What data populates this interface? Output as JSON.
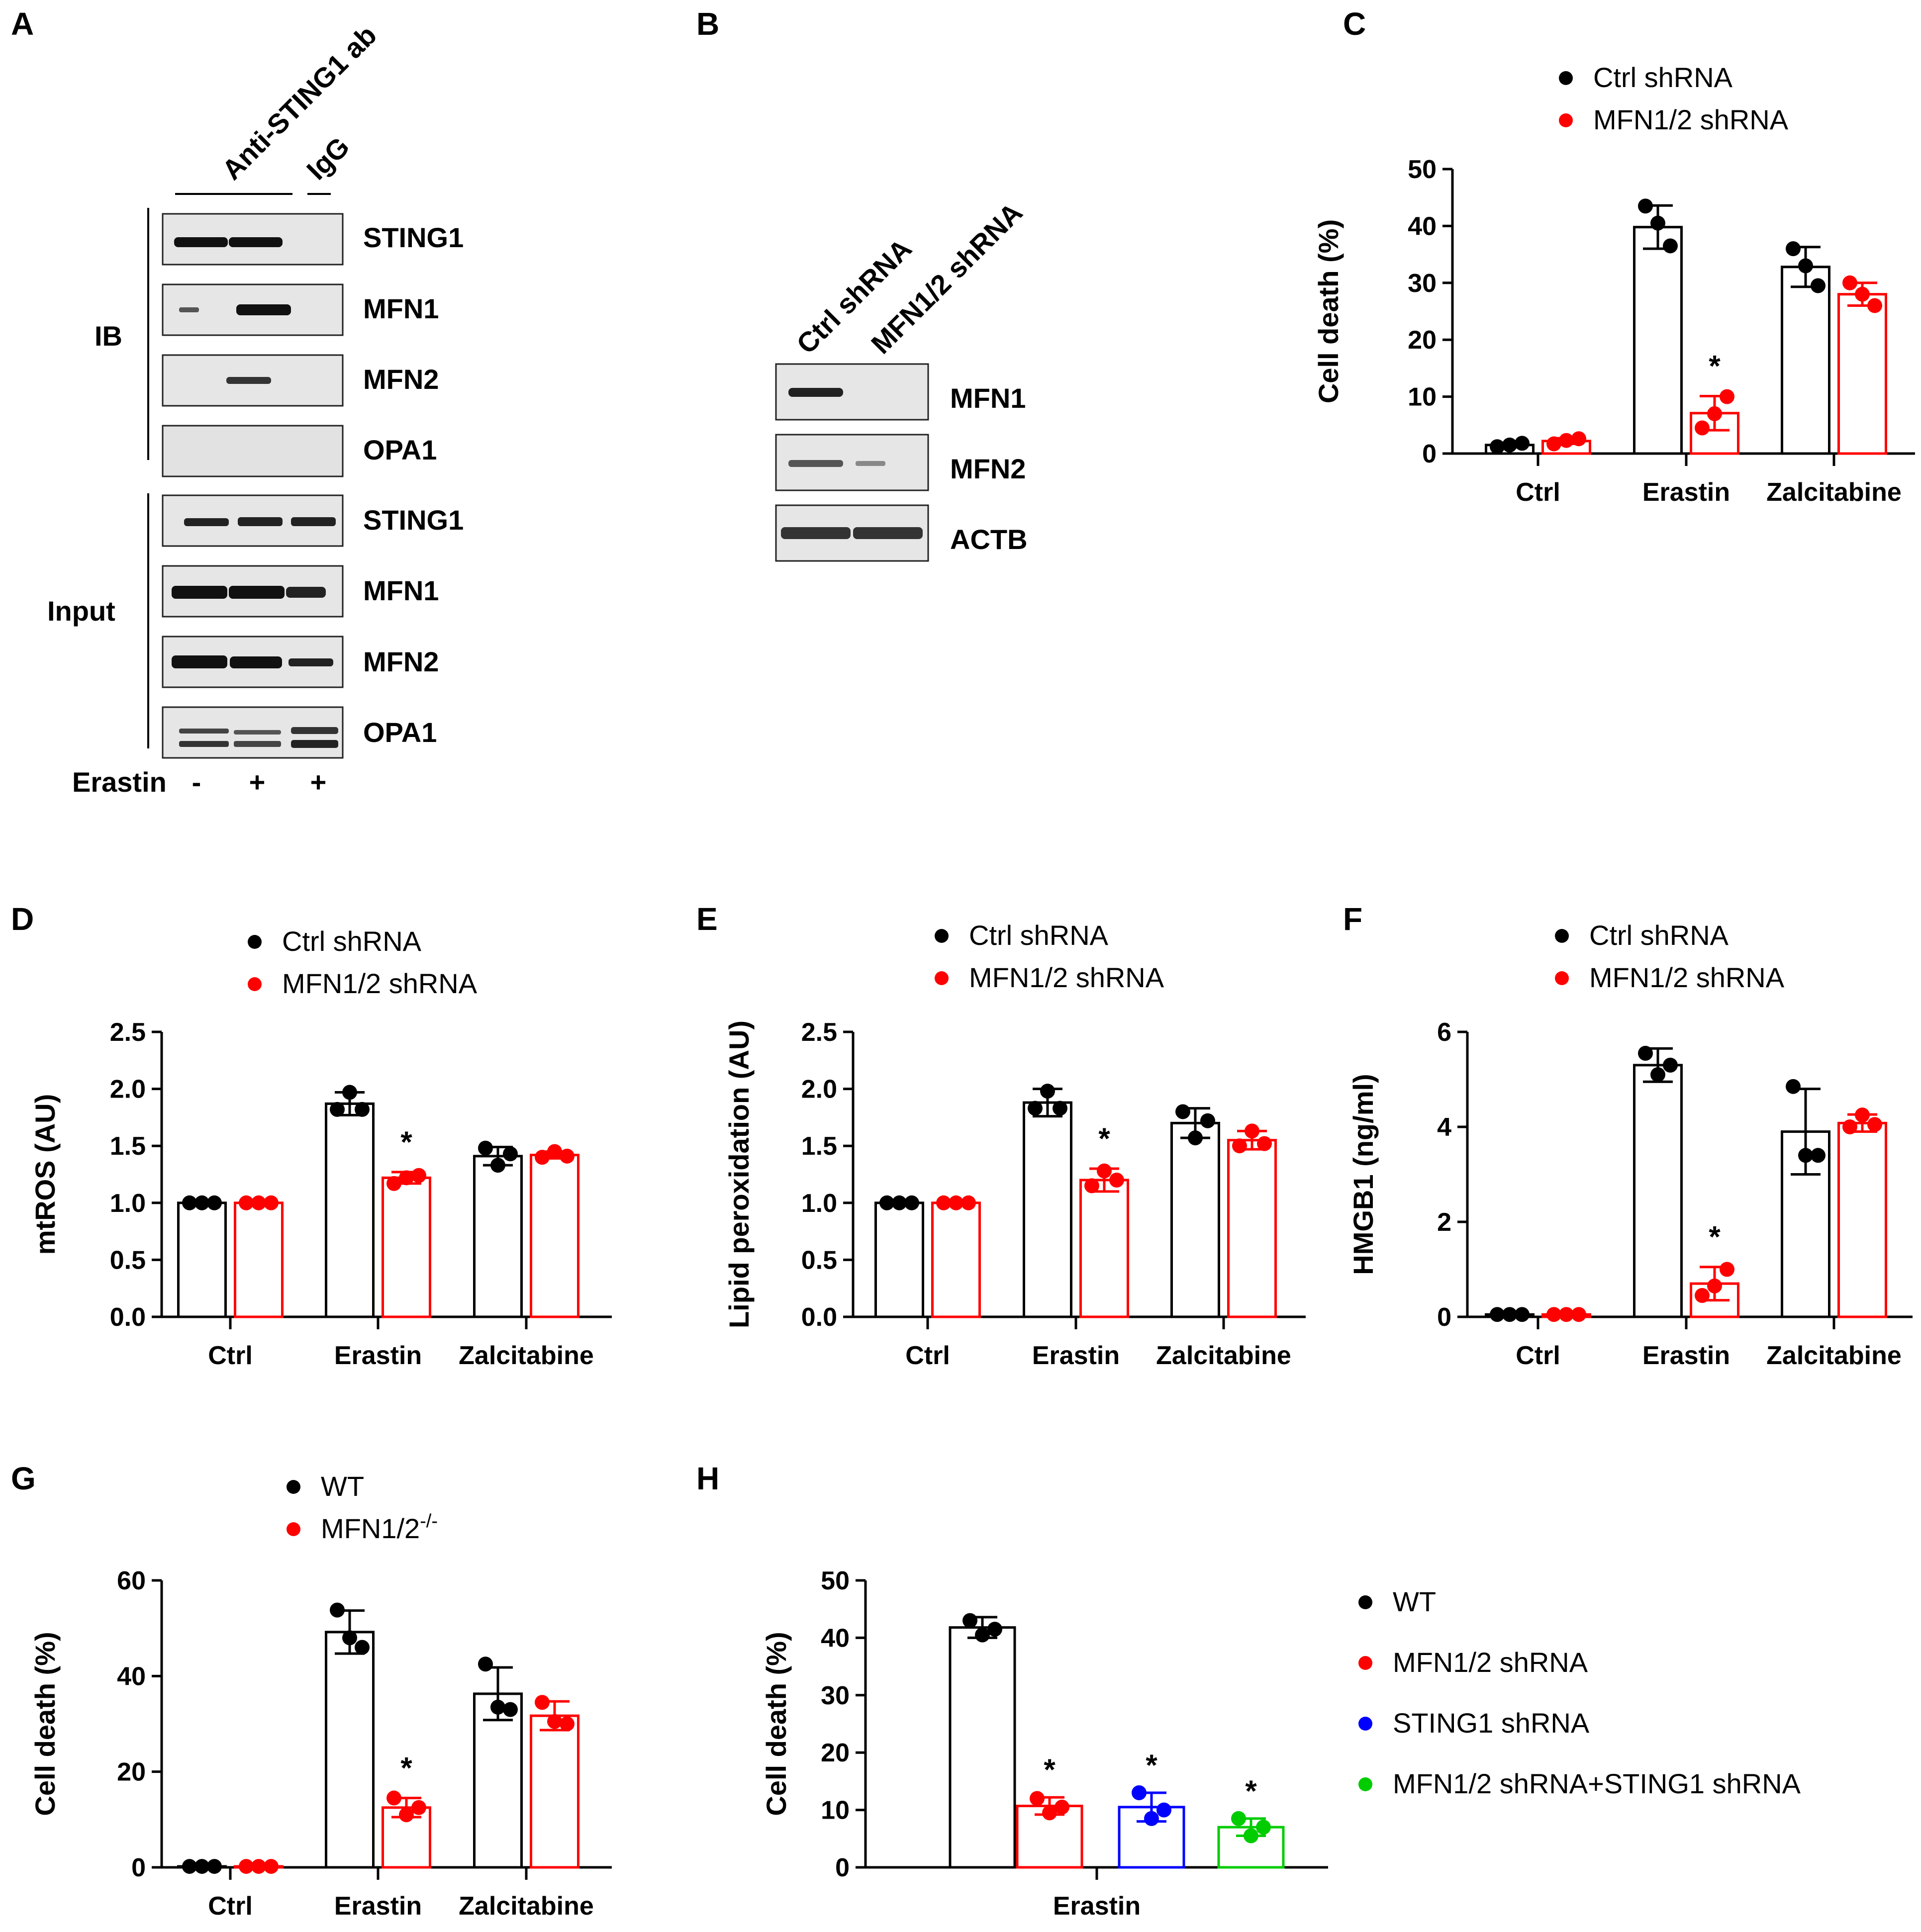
{
  "colors": {
    "ctrl": "#000000",
    "mfn": "#ff0000",
    "sting": "#0000ff",
    "combo": "#00cc00"
  },
  "panel_a": {
    "letter": "A",
    "header_ab": "Anti-STING1 ab",
    "header_igg": "IgG",
    "ib_label": "IB",
    "input_label": "Input",
    "ib_bands": [
      "STING1",
      "MFN1",
      "MFN2",
      "OPA1"
    ],
    "input_bands": [
      "STING1",
      "MFN1",
      "MFN2",
      "OPA1"
    ],
    "erastin_label": "Erastin",
    "erastin_signs": [
      "-",
      "+",
      "+"
    ]
  },
  "panel_b": {
    "letter": "B",
    "lanes": [
      "Ctrl shRNA",
      "MFN1/2 shRNA"
    ],
    "bands": [
      "MFN1",
      "MFN2",
      "ACTB"
    ]
  },
  "chart_data": [
    {
      "id": "C",
      "type": "bar",
      "title": "",
      "ylabel": "Cell death (%)",
      "ylim": [
        0,
        50
      ],
      "yticks": [
        "0",
        "10",
        "20",
        "30",
        "40",
        "50"
      ],
      "categories": [
        "Ctrl",
        "Erastin",
        "Zalcitabine"
      ],
      "series": [
        {
          "name": "Ctrl shRNA",
          "color": "#000000",
          "values": [
            1.5,
            39.8,
            32.8
          ],
          "err": [
            0.4,
            3.8,
            3.5
          ],
          "points": [
            [
              1.2,
              1.5,
              1.8
            ],
            [
              43.5,
              40.5,
              36.5
            ],
            [
              36.0,
              33.0,
              29.5
            ]
          ]
        },
        {
          "name": "MFN1/2 shRNA",
          "color": "#ff0000",
          "values": [
            2.2,
            7.1,
            28.0
          ],
          "err": [
            0.5,
            3.0,
            2.0
          ],
          "points": [
            [
              1.7,
              2.3,
              2.6
            ],
            [
              4.5,
              7.0,
              10.0
            ],
            [
              30.0,
              28.0,
              26.0
            ]
          ]
        }
      ],
      "annotations": [
        "",
        "*",
        ""
      ]
    },
    {
      "id": "D",
      "type": "bar",
      "ylabel": "mtROS (AU)",
      "ylim": [
        0,
        2.5
      ],
      "yticks": [
        "0.0",
        "0.5",
        "1.0",
        "1.5",
        "2.0",
        "2.5"
      ],
      "categories": [
        "Ctrl",
        "Erastin",
        "Zalcitabine"
      ],
      "series": [
        {
          "name": "Ctrl shRNA",
          "color": "#000000",
          "values": [
            1.0,
            1.87,
            1.41
          ],
          "err": [
            0.0,
            0.1,
            0.08
          ],
          "points": [
            [
              1.0,
              1.0,
              1.0
            ],
            [
              1.82,
              1.97,
              1.82
            ],
            [
              1.48,
              1.33,
              1.43
            ]
          ]
        },
        {
          "name": "MFN1/2 shRNA",
          "color": "#ff0000",
          "values": [
            1.0,
            1.22,
            1.42
          ],
          "err": [
            0.0,
            0.05,
            0.03
          ],
          "points": [
            [
              1.0,
              1.0,
              1.0
            ],
            [
              1.17,
              1.22,
              1.24
            ],
            [
              1.4,
              1.45,
              1.41
            ]
          ]
        }
      ],
      "annotations": [
        "",
        "*",
        ""
      ]
    },
    {
      "id": "E",
      "type": "bar",
      "ylabel": "Lipid peroxidation (AU)",
      "ylim": [
        0,
        2.5
      ],
      "yticks": [
        "0.0",
        "0.5",
        "1.0",
        "1.5",
        "2.0",
        "2.5"
      ],
      "categories": [
        "Ctrl",
        "Erastin",
        "Zalcitabine"
      ],
      "series": [
        {
          "name": "Ctrl shRNA",
          "color": "#000000",
          "values": [
            1.0,
            1.88,
            1.7
          ],
          "err": [
            0.0,
            0.12,
            0.13
          ],
          "points": [
            [
              1.0,
              1.0,
              1.0
            ],
            [
              1.83,
              1.98,
              1.83
            ],
            [
              1.8,
              1.57,
              1.72
            ]
          ]
        },
        {
          "name": "MFN1/2 shRNA",
          "color": "#ff0000",
          "values": [
            1.0,
            1.2,
            1.55
          ],
          "err": [
            0.0,
            0.1,
            0.08
          ],
          "points": [
            [
              1.0,
              1.0,
              1.0
            ],
            [
              1.15,
              1.28,
              1.2
            ],
            [
              1.5,
              1.63,
              1.52
            ]
          ]
        }
      ],
      "annotations": [
        "",
        "*",
        ""
      ]
    },
    {
      "id": "F",
      "type": "bar",
      "ylabel": "HMGB1 (ng/ml)",
      "ylim": [
        0,
        6
      ],
      "yticks": [
        "0",
        "2",
        "4",
        "6"
      ],
      "categories": [
        "Ctrl",
        "Erastin",
        "Zalcitabine"
      ],
      "series": [
        {
          "name": "Ctrl shRNA",
          "color": "#000000",
          "values": [
            0.05,
            5.3,
            3.9
          ],
          "err": [
            0.0,
            0.35,
            0.9
          ],
          "points": [
            [
              0.05,
              0.05,
              0.05
            ],
            [
              5.55,
              5.1,
              5.3
            ],
            [
              4.85,
              3.4,
              3.4
            ]
          ]
        },
        {
          "name": "MFN1/2 shRNA",
          "color": "#ff0000",
          "values": [
            0.05,
            0.7,
            4.08
          ],
          "err": [
            0.0,
            0.35,
            0.18
          ],
          "points": [
            [
              0.05,
              0.05,
              0.05
            ],
            [
              0.45,
              0.65,
              1.0
            ],
            [
              4.0,
              4.25,
              4.05
            ]
          ]
        }
      ],
      "annotations": [
        "",
        "*",
        ""
      ]
    },
    {
      "id": "G",
      "type": "bar",
      "ylabel": "Cell death (%)",
      "ylim": [
        0,
        60
      ],
      "yticks": [
        "0",
        "20",
        "40",
        "60"
      ],
      "categories": [
        "Ctrl",
        "Erastin",
        "Zalcitabine"
      ],
      "series": [
        {
          "name": "WT",
          "color": "#000000",
          "values": [
            0.2,
            49.2,
            36.3
          ],
          "err": [
            0.0,
            4.5,
            5.5
          ],
          "points": [
            [
              0.2,
              0.2,
              0.2
            ],
            [
              53.8,
              48.0,
              46.0
            ],
            [
              42.5,
              33.5,
              33.0
            ]
          ]
        },
        {
          "name": "MFN1/2",
          "sup": "-/-",
          "color": "#ff0000",
          "values": [
            0.2,
            12.5,
            31.7
          ],
          "err": [
            0.0,
            2.0,
            3.0
          ],
          "points": [
            [
              0.2,
              0.2,
              0.2
            ],
            [
              14.5,
              11.0,
              12.5
            ],
            [
              34.5,
              30.5,
              30.0
            ]
          ]
        }
      ],
      "annotations": [
        "",
        "*",
        ""
      ]
    },
    {
      "id": "H",
      "type": "bar",
      "ylabel": "Cell death (%)",
      "ylim": [
        0,
        50
      ],
      "yticks": [
        "0",
        "10",
        "20",
        "30",
        "40",
        "50"
      ],
      "categories": [
        "Erastin"
      ],
      "series": [
        {
          "name": "WT",
          "color": "#000000",
          "values": [
            41.8
          ],
          "err": [
            1.8
          ],
          "points": [
            [
              43.0,
              40.5,
              41.5
            ]
          ]
        },
        {
          "name": "MFN1/2 shRNA",
          "color": "#ff0000",
          "values": [
            10.7
          ],
          "err": [
            1.5
          ],
          "points": [
            [
              12.0,
              9.5,
              10.5
            ]
          ]
        },
        {
          "name": "STING1 shRNA",
          "color": "#0000ff",
          "values": [
            10.5
          ],
          "err": [
            2.5
          ],
          "points": [
            [
              13.0,
              8.5,
              10.0
            ]
          ]
        },
        {
          "name": "MFN1/2 shRNA+STING1 shRNA",
          "color": "#00cc00",
          "values": [
            7.0
          ],
          "err": [
            1.5
          ],
          "points": [
            [
              8.5,
              5.5,
              7.0
            ]
          ]
        }
      ],
      "annotations": [
        "",
        "*",
        "*",
        "*"
      ]
    }
  ]
}
